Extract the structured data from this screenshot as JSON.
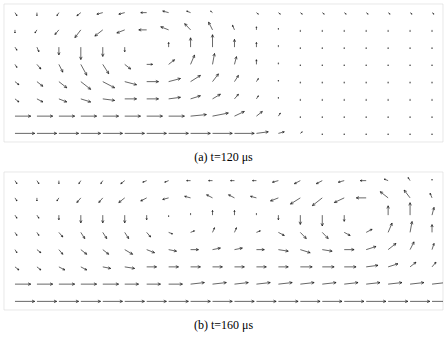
{
  "chart_data": [
    {
      "type": "quiver",
      "title": "(a) t=120 μs",
      "color": "#000000",
      "tick_labels": false,
      "xlim": [
        -0.5,
        19.5
      ],
      "ylim": [
        -0.5,
        7.5
      ],
      "x": [
        0,
        1,
        2,
        3,
        4,
        5,
        6,
        7,
        8,
        9,
        10,
        11,
        12,
        13,
        14,
        15,
        16,
        17,
        18,
        19
      ],
      "y": [
        0,
        1,
        2,
        3,
        4,
        5,
        6,
        7
      ],
      "u": [
        [
          1.0,
          1.0,
          1.0,
          1.0,
          1.0,
          1.0,
          1.0,
          1.0,
          1.0,
          1.0,
          1.0,
          0.6,
          0.3,
          0.1,
          0,
          0,
          0,
          0,
          0,
          0
        ],
        [
          0.8,
          0.8,
          0.8,
          0.8,
          0.8,
          0.8,
          0.8,
          0.8,
          0.8,
          0.8,
          0.5,
          0.3,
          0.1,
          0,
          0,
          0,
          0,
          0,
          0,
          0
        ],
        [
          0.2,
          0.3,
          0.4,
          0.5,
          0.6,
          0.6,
          0.6,
          0.6,
          0.5,
          0.4,
          0.2,
          0.1,
          0,
          0,
          0,
          0,
          0,
          0,
          0,
          0
        ],
        [
          0.2,
          0.3,
          0.4,
          0.5,
          0.6,
          0.6,
          0.6,
          0.6,
          0.5,
          0.3,
          0.2,
          0.1,
          0,
          0,
          0,
          0,
          0,
          0,
          0,
          0
        ],
        [
          0.1,
          0.2,
          0.2,
          0.3,
          0.3,
          0.3,
          0.3,
          0.3,
          0.2,
          0.1,
          0.1,
          0,
          0,
          0,
          0,
          0,
          0,
          0,
          0,
          0
        ],
        [
          0.1,
          0.1,
          0,
          0,
          0,
          0,
          0,
          0,
          0,
          0,
          0,
          0,
          0,
          0,
          0,
          0,
          0,
          0,
          0,
          0
        ],
        [
          0,
          -0.1,
          -0.2,
          -0.3,
          -0.4,
          -0.4,
          -0.4,
          -0.4,
          -0.3,
          -0.2,
          -0.1,
          0,
          0,
          0,
          0,
          0,
          0,
          0,
          0,
          0
        ],
        [
          0.1,
          0,
          -0.1,
          -0.2,
          -0.3,
          -0.3,
          -0.3,
          -0.3,
          -0.2,
          -0.1,
          0,
          0.1,
          0.1,
          0.1,
          0.1,
          0.1,
          0.1,
          0.1,
          0.1,
          0.1
        ]
      ],
      "v": [
        [
          0,
          0,
          0,
          0,
          0,
          0,
          0,
          0,
          0,
          0,
          0,
          0.1,
          0.1,
          0.1,
          -0.1,
          -0.1,
          -0.1,
          -0.1,
          -0.1,
          -0.1
        ],
        [
          0,
          0,
          0,
          0,
          0,
          0,
          0,
          0,
          0.1,
          0.2,
          0.3,
          0.3,
          0.2,
          -0.1,
          -0.1,
          -0.1,
          -0.1,
          -0.1,
          -0.1,
          -0.1
        ],
        [
          -0.2,
          -0.2,
          -0.2,
          -0.2,
          -0.1,
          0,
          0,
          0.1,
          0.2,
          0.3,
          0.3,
          0.2,
          0.1,
          -0.1,
          -0.1,
          -0.1,
          -0.1,
          -0.1,
          -0.1,
          -0.1
        ],
        [
          -0.2,
          -0.3,
          -0.4,
          -0.5,
          -0.4,
          -0.2,
          0,
          0.2,
          0.4,
          0.5,
          0.4,
          0.2,
          0.1,
          -0.1,
          -0.1,
          -0.1,
          -0.1,
          -0.1,
          -0.1,
          -0.1
        ],
        [
          -0.2,
          -0.3,
          -0.5,
          -0.7,
          -0.6,
          -0.3,
          0,
          0.3,
          0.6,
          0.7,
          0.5,
          0.3,
          0.1,
          -0.1,
          -0.1,
          -0.1,
          -0.1,
          -0.1,
          -0.1,
          -0.1
        ],
        [
          -0.2,
          -0.3,
          -0.5,
          -0.8,
          -0.6,
          -0.3,
          0,
          0.3,
          0.6,
          0.8,
          0.5,
          0.3,
          0.1,
          -0.1,
          -0.1,
          -0.1,
          -0.1,
          -0.1,
          -0.1,
          -0.1
        ],
        [
          -0.2,
          -0.2,
          -0.3,
          -0.5,
          -0.4,
          -0.2,
          0,
          0.2,
          0.4,
          0.5,
          0.3,
          0.2,
          0.1,
          -0.1,
          -0.1,
          -0.1,
          -0.1,
          -0.1,
          -0.1,
          -0.1
        ],
        [
          -0.2,
          -0.2,
          -0.2,
          -0.2,
          -0.1,
          -0.1,
          0,
          0.1,
          0.1,
          0.1,
          0,
          -0.1,
          -0.1,
          -0.1,
          -0.1,
          -0.1,
          -0.1,
          -0.1,
          -0.1,
          -0.1
        ]
      ]
    },
    {
      "type": "quiver",
      "title": "(b) t=160 μs",
      "color": "#000000",
      "tick_labels": false,
      "xlim": [
        -0.5,
        19.5
      ],
      "ylim": [
        -0.5,
        7.5
      ],
      "x": [
        0,
        1,
        2,
        3,
        4,
        5,
        6,
        7,
        8,
        9,
        10,
        11,
        12,
        13,
        14,
        15,
        16,
        17,
        18,
        19
      ],
      "y": [
        0,
        1,
        2,
        3,
        4,
        5,
        6,
        7
      ],
      "u": [
        [
          1.0,
          1.0,
          1.0,
          1.0,
          1.0,
          1.0,
          1.0,
          1.0,
          1.0,
          1.0,
          1.0,
          1.0,
          1.0,
          1.0,
          1.0,
          1.0,
          1.0,
          1.0,
          1.0,
          1.0
        ],
        [
          0.8,
          0.8,
          0.8,
          0.8,
          0.8,
          0.7,
          0.7,
          0.7,
          0.7,
          0.7,
          0.7,
          0.7,
          0.7,
          0.7,
          0.7,
          0.7,
          0.7,
          0.7,
          0.7,
          0.7
        ],
        [
          0.2,
          0.2,
          0.3,
          0.3,
          0.4,
          0.5,
          0.5,
          0.5,
          0.5,
          0.5,
          0.5,
          0.5,
          0.5,
          0.6,
          0.6,
          0.6,
          0.6,
          0.5,
          0.3,
          0.2
        ],
        [
          0.1,
          0.2,
          0.2,
          0.3,
          0.3,
          0.4,
          0.4,
          0.4,
          0.4,
          0.4,
          0.4,
          0.4,
          0.5,
          0.5,
          0.5,
          0.5,
          0.5,
          0.4,
          0.2,
          0.1
        ],
        [
          0.1,
          0.1,
          0.2,
          0.2,
          0.2,
          0.2,
          0.2,
          0.2,
          0.2,
          0.1,
          0.1,
          0.2,
          0.3,
          0.3,
          0.3,
          0.3,
          0.3,
          0.2,
          0.1,
          0
        ],
        [
          0.1,
          0.1,
          0,
          0,
          0,
          0,
          0,
          0,
          0,
          0,
          0,
          0,
          0,
          0,
          0,
          0,
          0,
          0,
          0,
          0.1
        ],
        [
          0.1,
          0,
          -0.1,
          -0.2,
          -0.2,
          -0.3,
          -0.3,
          -0.3,
          -0.3,
          -0.3,
          -0.3,
          -0.3,
          -0.4,
          -0.5,
          -0.5,
          -0.5,
          -0.5,
          -0.4,
          -0.3,
          -0.1
        ],
        [
          0.1,
          0.1,
          0,
          -0.1,
          -0.1,
          -0.2,
          -0.2,
          -0.2,
          -0.2,
          -0.2,
          -0.2,
          -0.2,
          -0.3,
          -0.3,
          -0.3,
          -0.3,
          -0.3,
          -0.2,
          -0.1,
          0
        ]
      ],
      "v": [
        [
          0,
          0,
          0,
          0,
          0,
          0,
          0,
          0,
          0,
          0,
          0,
          0,
          0,
          0,
          0,
          0,
          0,
          0,
          0,
          0
        ],
        [
          0,
          0,
          0,
          0,
          0,
          0,
          0,
          0,
          0.1,
          0.1,
          0.1,
          0.1,
          0.1,
          0.1,
          0.1,
          0.1,
          0.1,
          0.1,
          0.1,
          0.1
        ],
        [
          -0.2,
          -0.2,
          -0.2,
          -0.2,
          -0.1,
          -0.1,
          0,
          0,
          0,
          0,
          0,
          0,
          0,
          0,
          0,
          0,
          0.1,
          0.2,
          0.3,
          0.3
        ],
        [
          -0.2,
          -0.2,
          -0.3,
          -0.3,
          -0.3,
          -0.3,
          -0.2,
          -0.1,
          0,
          0.1,
          0.1,
          0,
          -0.1,
          -0.2,
          -0.1,
          0,
          0.2,
          0.4,
          0.5,
          0.4
        ],
        [
          -0.2,
          -0.2,
          -0.3,
          -0.4,
          -0.4,
          -0.4,
          -0.3,
          -0.1,
          0.1,
          0.3,
          0.3,
          0.1,
          -0.2,
          -0.4,
          -0.4,
          -0.2,
          0.2,
          0.6,
          0.7,
          0.5
        ],
        [
          -0.2,
          -0.2,
          -0.3,
          -0.5,
          -0.5,
          -0.5,
          -0.3,
          -0.1,
          0.1,
          0.3,
          0.3,
          0.1,
          -0.3,
          -0.6,
          -0.7,
          -0.4,
          0,
          0.6,
          0.8,
          0.5
        ],
        [
          -0.2,
          -0.2,
          -0.2,
          -0.3,
          -0.3,
          -0.3,
          -0.2,
          -0.1,
          0.1,
          0.2,
          0.2,
          0.1,
          -0.2,
          -0.4,
          -0.5,
          -0.3,
          0,
          0.4,
          0.5,
          0.3
        ],
        [
          -0.2,
          -0.2,
          -0.2,
          -0.2,
          -0.2,
          -0.2,
          -0.1,
          -0.1,
          0,
          0,
          0,
          0,
          -0.1,
          -0.2,
          -0.2,
          -0.1,
          0,
          0.1,
          0.2,
          0.1
        ]
      ]
    }
  ]
}
